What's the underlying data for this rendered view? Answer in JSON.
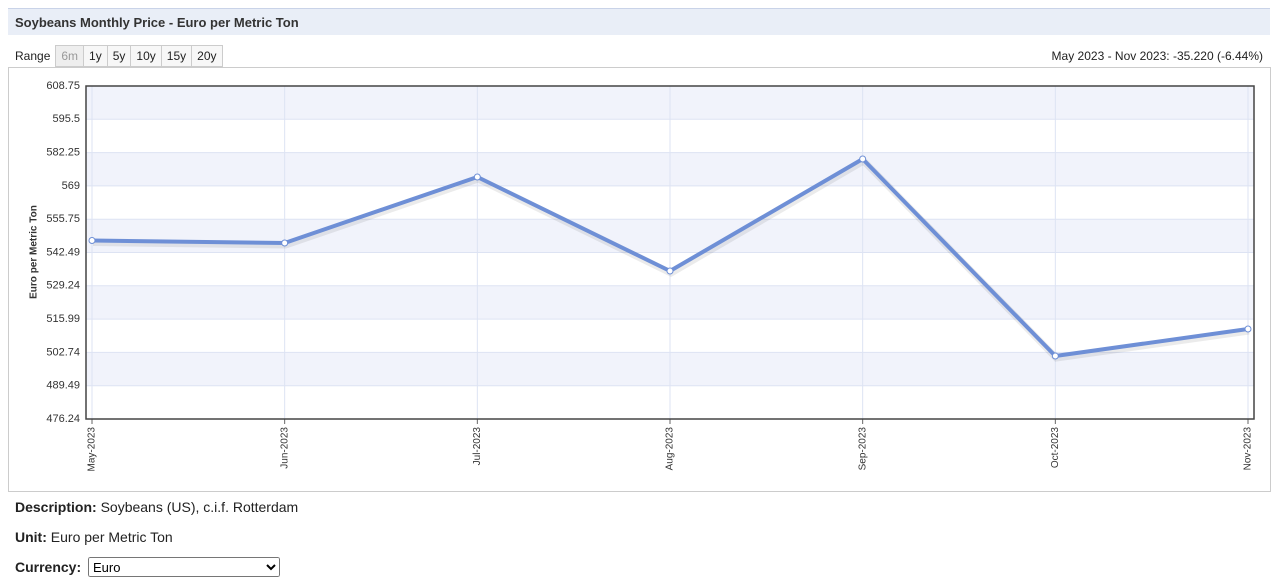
{
  "header": {
    "title": "Soybeans Monthly Price - Euro per Metric Ton"
  },
  "range": {
    "label": "Range",
    "options": [
      "6m",
      "1y",
      "5y",
      "10y",
      "15y",
      "20y"
    ],
    "selected": "6m"
  },
  "change": "May 2023 - Nov 2023: -35.220 (-6.44%)",
  "chart_data": {
    "type": "line",
    "y_label": "Euro per Metric Ton",
    "categories": [
      "May-2023",
      "Jun-2023",
      "Jul-2023",
      "Aug-2023",
      "Sep-2023",
      "Oct-2023",
      "Nov-2023"
    ],
    "values": [
      547.27,
      546.28,
      572.54,
      535.13,
      579.7,
      501.31,
      512.05
    ],
    "color": "#6e8fd6",
    "ylim": [
      476.24,
      608.75
    ],
    "yticks": [
      476.24,
      489.49,
      502.74,
      515.99,
      529.24,
      542.49,
      555.75,
      569,
      582.25,
      595.5,
      608.75
    ],
    "grid": true
  },
  "details": [
    {
      "label": "Description:",
      "value": "Soybeans (US), c.i.f. Rotterdam"
    },
    {
      "label": "Unit:",
      "value": "Euro per Metric Ton"
    }
  ],
  "currency": {
    "label": "Currency:",
    "selected": "Euro"
  }
}
